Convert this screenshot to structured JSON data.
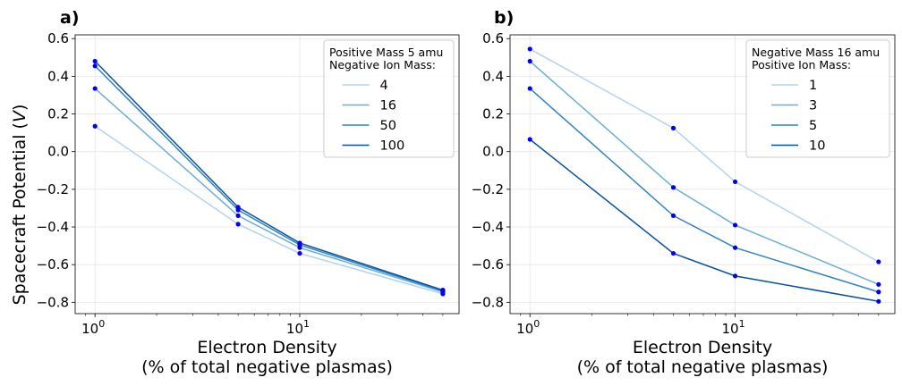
{
  "figure": {
    "ylabel_prefix": "Spacecraft Potential (",
    "ylabel_var": "V",
    "ylabel_suffix": ")"
  },
  "chart_data": [
    {
      "type": "line",
      "panel_label": "a)",
      "xscale": "log",
      "xlim": [
        0.8,
        60
      ],
      "ylim": [
        -0.86,
        0.62
      ],
      "xlabel_line1": "Electron Density",
      "xlabel_line2": "(% of total negative plasmas)",
      "yticks": [
        0.6,
        0.4,
        0.2,
        0.0,
        -0.2,
        -0.4,
        -0.6,
        -0.8
      ],
      "ytick_labels": [
        "0.6",
        "0.4",
        "0.2",
        "0.0",
        "−0.2",
        "−0.4",
        "−0.6",
        "−0.8"
      ],
      "xticks_major": [
        1,
        10
      ],
      "xtick_base": "10",
      "xtick_exps": [
        "0",
        "1"
      ],
      "grid": true,
      "legend_position": "top-right",
      "legend_title_line1": "Positive Mass 5 amu",
      "legend_title_line2": "Negative Ion Mass:",
      "x": [
        1,
        5,
        10,
        50
      ],
      "series": [
        {
          "name": "4",
          "color": "#b3d3ea",
          "values": [
            0.135,
            -0.385,
            -0.54,
            -0.755
          ]
        },
        {
          "name": "16",
          "color": "#6aaed6",
          "values": [
            0.335,
            -0.34,
            -0.51,
            -0.745
          ]
        },
        {
          "name": "50",
          "color": "#3182bd",
          "values": [
            0.455,
            -0.31,
            -0.495,
            -0.74
          ]
        },
        {
          "name": "100",
          "color": "#08519c",
          "values": [
            0.48,
            -0.295,
            -0.485,
            -0.735
          ]
        }
      ]
    },
    {
      "type": "line",
      "panel_label": "b)",
      "xscale": "log",
      "xlim": [
        0.8,
        60
      ],
      "ylim": [
        -0.86,
        0.62
      ],
      "xlabel_line1": "Electron Density",
      "xlabel_line2": "(% of total negative plasmas)",
      "yticks": [
        0.6,
        0.4,
        0.2,
        0.0,
        -0.2,
        -0.4,
        -0.6,
        -0.8
      ],
      "ytick_labels": [
        "0.6",
        "0.4",
        "0.2",
        "0.0",
        "−0.2",
        "−0.4",
        "−0.6",
        "−0.8"
      ],
      "xticks_major": [
        1,
        10
      ],
      "xtick_base": "10",
      "xtick_exps": [
        "0",
        "1"
      ],
      "grid": true,
      "legend_position": "top-right",
      "legend_title_line1": "Negative Mass 16 amu",
      "legend_title_line2": "Positive Ion Mass:",
      "x": [
        1,
        5,
        10,
        50
      ],
      "series": [
        {
          "name": "1",
          "color": "#b3d3ea",
          "values": [
            0.545,
            0.125,
            -0.16,
            -0.585
          ]
        },
        {
          "name": "3",
          "color": "#6aaed6",
          "values": [
            0.48,
            -0.19,
            -0.39,
            -0.705
          ]
        },
        {
          "name": "5",
          "color": "#3182bd",
          "values": [
            0.335,
            -0.34,
            -0.51,
            -0.745
          ]
        },
        {
          "name": "10",
          "color": "#08519c",
          "values": [
            0.065,
            -0.54,
            -0.66,
            -0.795
          ]
        }
      ]
    }
  ]
}
